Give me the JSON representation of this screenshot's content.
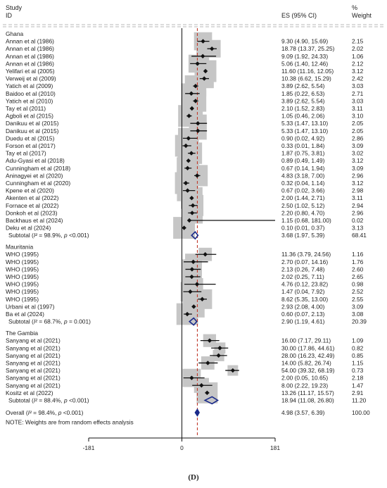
{
  "header": {
    "study_label": "Study",
    "id_label": "ID",
    "es_label": "ES (95% CI)",
    "pct_label": "%",
    "weight_label": "Weight"
  },
  "caption": "(D)",
  "chart_data": {
    "type": "forest",
    "xlim": [
      -181,
      181
    ],
    "ticks": [
      -181,
      0,
      181
    ],
    "tick_labels": [
      "-181",
      "0",
      "181"
    ],
    "x_transform": "sqrt",
    "overall_ref": 4.98,
    "groups": [
      {
        "name": "Ghana",
        "studies": [
          {
            "label": "Annan et al (1986)",
            "es": 9.3,
            "lo": 4.9,
            "hi": 15.69,
            "ci": "9.30 (4.90, 15.69)",
            "weight": "2.15"
          },
          {
            "label": "Annan et al (1986)",
            "es": 18.78,
            "lo": 13.37,
            "hi": 25.25,
            "ci": "18.78 (13.37, 25.25)",
            "weight": "2.02"
          },
          {
            "label": "Annan et al (1986)",
            "es": 9.09,
            "lo": 1.92,
            "hi": 24.33,
            "ci": "9.09 (1.92, 24.33)",
            "weight": "1.06"
          },
          {
            "label": "Annan et al (1986)",
            "es": 5.06,
            "lo": 1.4,
            "hi": 12.46,
            "ci": "5.06 (1.40, 12.46)",
            "weight": "2.12"
          },
          {
            "label": "Yelifari et al (2005)",
            "es": 11.6,
            "lo": 11.16,
            "hi": 12.05,
            "ci": "11.60 (11.16, 12.05)",
            "weight": "3.12"
          },
          {
            "label": "Verweij et al (2009)",
            "es": 10.38,
            "lo": 6.62,
            "hi": 15.29,
            "ci": "10.38 (6.62, 15.29)",
            "weight": "2.42"
          },
          {
            "label": "Yatich et al (2009)",
            "es": 3.89,
            "lo": 2.62,
            "hi": 5.54,
            "ci": "3.89 (2.62, 5.54)",
            "weight": "3.03"
          },
          {
            "label": "Baidoo et al (2010)",
            "es": 1.85,
            "lo": 0.22,
            "hi": 6.53,
            "ci": "1.85 (0.22, 6.53)",
            "weight": "2.71"
          },
          {
            "label": "Yatich et al (2010)",
            "es": 3.89,
            "lo": 2.62,
            "hi": 5.54,
            "ci": "3.89 (2.62, 5.54)",
            "weight": "3.03"
          },
          {
            "label": "Tay et al (2011)",
            "es": 2.1,
            "lo": 1.52,
            "hi": 2.83,
            "ci": "2.10 (1.52, 2.83)",
            "weight": "3.11"
          },
          {
            "label": "Agboli et al (2015)",
            "es": 1.05,
            "lo": 0.46,
            "hi": 2.06,
            "ci": "1.05 (0.46, 2.06)",
            "weight": "3.10"
          },
          {
            "label": "Danikuu et al (2015)",
            "es": 5.33,
            "lo": 1.47,
            "hi": 13.1,
            "ci": "5.33 (1.47, 13.10)",
            "weight": "2.05"
          },
          {
            "label": "Danikuu et al (2015)",
            "es": 5.33,
            "lo": 1.47,
            "hi": 13.1,
            "ci": "5.33 (1.47, 13.10)",
            "weight": "2.05"
          },
          {
            "label": "Duedu et al (2015)",
            "es": 0.9,
            "lo": 0.02,
            "hi": 4.92,
            "ci": "0.90 (0.02, 4.92)",
            "weight": "2.86"
          },
          {
            "label": "Forson et al (2017)",
            "es": 0.33,
            "lo": 0.01,
            "hi": 1.84,
            "ci": "0.33 (0.01, 1.84)",
            "weight": "3.09"
          },
          {
            "label": "Tay et al (2017)",
            "es": 1.87,
            "lo": 0.75,
            "hi": 3.81,
            "ci": "1.87 (0.75, 3.81)",
            "weight": "3.02"
          },
          {
            "label": "Adu-Gyasi et al (2018)",
            "es": 0.89,
            "lo": 0.49,
            "hi": 1.49,
            "ci": "0.89 (0.49, 1.49)",
            "weight": "3.12"
          },
          {
            "label": "Cunningham et al (2018)",
            "es": 0.67,
            "lo": 0.14,
            "hi": 1.94,
            "ci": "0.67 (0.14, 1.94)",
            "weight": "3.09"
          },
          {
            "label": "Aninagyei et al (2020)",
            "es": 4.83,
            "lo": 3.18,
            "hi": 7.0,
            "ci": "4.83 (3.18, 7.00)",
            "weight": "2.96"
          },
          {
            "label": "Cunningham et al (2020)",
            "es": 0.32,
            "lo": 0.04,
            "hi": 1.14,
            "ci": "0.32 (0.04, 1.14)",
            "weight": "3.12"
          },
          {
            "label": "Kpene et al (2020)",
            "es": 0.67,
            "lo": 0.02,
            "hi": 3.66,
            "ci": "0.67 (0.02, 3.66)",
            "weight": "2.98"
          },
          {
            "label": "Akenten et al (2022)",
            "es": 2.0,
            "lo": 1.44,
            "hi": 2.71,
            "ci": "2.00 (1.44, 2.71)",
            "weight": "3.11"
          },
          {
            "label": "Fornace et al (2022)",
            "es": 2.5,
            "lo": 1.02,
            "hi": 5.12,
            "ci": "2.50 (1.02, 5.12)",
            "weight": "2.94"
          },
          {
            "label": "Donkoh et al (2023)",
            "es": 2.2,
            "lo": 0.8,
            "hi": 4.7,
            "ci": "2.20 (0.80, 4.70)",
            "weight": "2.96"
          },
          {
            "label": "Backhaus et al (2024)",
            "es": 1.15,
            "lo": 0.68,
            "hi": 181.0,
            "ci": "1.15 (0.68, 181.00)",
            "weight": "0.02"
          },
          {
            "label": "Deku et al (2024)",
            "es": 0.1,
            "lo": 0.01,
            "hi": 0.37,
            "ci": "0.10 (0.01, 0.37)",
            "weight": "3.13"
          }
        ],
        "subtotal": {
          "label": "Subtotal (I² = 98.9%, p <0.001)",
          "es": 3.68,
          "lo": 1.97,
          "hi": 5.39,
          "ci": "3.68 (1.97, 5.39)",
          "weight": "68.41"
        }
      },
      {
        "name": "Mauritania",
        "studies": [
          {
            "label": "WHO (1995)",
            "es": 11.36,
            "lo": 3.79,
            "hi": 24.56,
            "ci": "11.36 (3.79, 24.56)",
            "weight": "1.16"
          },
          {
            "label": "WHO (1995)",
            "es": 2.7,
            "lo": 0.07,
            "hi": 14.16,
            "ci": "2.70 (0.07, 14.16)",
            "weight": "1.76"
          },
          {
            "label": "WHO (1995)",
            "es": 2.13,
            "lo": 0.26,
            "hi": 7.48,
            "ci": "2.13 (0.26, 7.48)",
            "weight": "2.60"
          },
          {
            "label": "WHO (1995)",
            "es": 2.02,
            "lo": 0.25,
            "hi": 7.11,
            "ci": "2.02 (0.25, 7.11)",
            "weight": "2.65"
          },
          {
            "label": "WHO (1995)",
            "es": 4.76,
            "lo": 0.12,
            "hi": 23.82,
            "ci": "4.76 (0.12, 23.82)",
            "weight": "0.98"
          },
          {
            "label": "WHO (1995)",
            "es": 1.47,
            "lo": 0.04,
            "hi": 7.92,
            "ci": "1.47 (0.04, 7.92)",
            "weight": "2.52"
          },
          {
            "label": "WHO (1995)",
            "es": 8.62,
            "lo": 5.35,
            "hi": 13.0,
            "ci": "8.62 (5.35, 13.00)",
            "weight": "2.55"
          },
          {
            "label": "Urbani et al (1997)",
            "es": 2.93,
            "lo": 2.08,
            "hi": 4.0,
            "ci": "2.93 (2.08, 4.00)",
            "weight": "3.09"
          },
          {
            "label": "Ba et al (2024)",
            "es": 0.6,
            "lo": 0.07,
            "hi": 2.13,
            "ci": "0.60 (0.07, 2.13)",
            "weight": "3.08"
          }
        ],
        "subtotal": {
          "label": "Subtotal (I² = 68.7%, p = 0.001)",
          "es": 2.9,
          "lo": 1.19,
          "hi": 4.61,
          "ci": "2.90 (1.19, 4.61)",
          "weight": "20.39"
        }
      },
      {
        "name": "The Gambia",
        "studies": [
          {
            "label": "Sanyang et al (2021)",
            "es": 16.0,
            "lo": 7.17,
            "hi": 29.11,
            "ci": "16.00 (7.17, 29.11)",
            "weight": "1.09"
          },
          {
            "label": "Sanyang et al (2021)",
            "es": 30.0,
            "lo": 17.86,
            "hi": 44.61,
            "ci": "30.00 (17.86, 44.61)",
            "weight": "0.82"
          },
          {
            "label": "Sanyang et al (2021)",
            "es": 28.0,
            "lo": 16.23,
            "hi": 42.49,
            "ci": "28.00 (16.23, 42.49)",
            "weight": "0.85"
          },
          {
            "label": "Sanyang et al (2021)",
            "es": 14.0,
            "lo": 5.82,
            "hi": 26.74,
            "ci": "14.00 (5.82, 26.74)",
            "weight": "1.15"
          },
          {
            "label": "Sanyang et al (2021)",
            "es": 54.0,
            "lo": 39.32,
            "hi": 68.19,
            "ci": "54.00 (39.32, 68.19)",
            "weight": "0.73"
          },
          {
            "label": "Sanyang et al (2021)",
            "es": 2.0,
            "lo": 0.05,
            "hi": 10.65,
            "ci": "2.00 (0.05, 10.65)",
            "weight": "2.18"
          },
          {
            "label": "Sanyang et al (2021)",
            "es": 8.0,
            "lo": 2.22,
            "hi": 19.23,
            "ci": "8.00 (2.22, 19.23)",
            "weight": "1.47"
          },
          {
            "label": "Kositz et al (2022)",
            "es": 13.26,
            "lo": 11.17,
            "hi": 15.57,
            "ci": "13.26 (11.17, 15.57)",
            "weight": "2.91"
          }
        ],
        "subtotal": {
          "label": "Subtotal (I² = 88.4%, p <0.001)",
          "es": 18.94,
          "lo": 11.08,
          "hi": 26.8,
          "ci": "18.94 (11.08, 26.80)",
          "weight": "11.20"
        }
      }
    ],
    "overall": {
      "label": "Overall (I² = 98.4%, p <0.001)",
      "es": 4.98,
      "lo": 3.57,
      "hi": 6.39,
      "ci": "4.98 (3.57, 6.39)",
      "weight": "100.00"
    },
    "note": "NOTE: Weights are from random effects analysis"
  }
}
